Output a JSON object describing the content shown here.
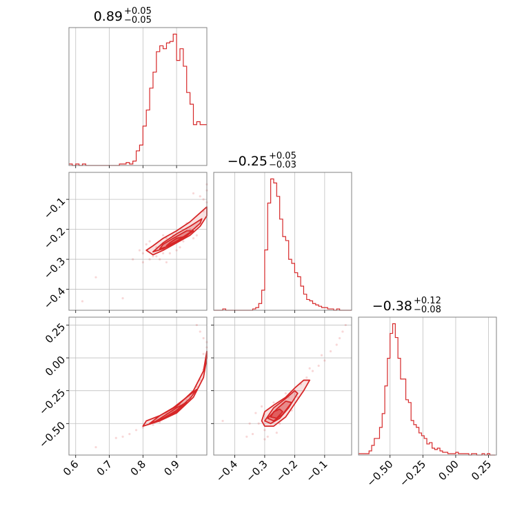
{
  "chart_data": {
    "type": "corner",
    "color": "#d62728",
    "grid": true,
    "parameters": [
      {
        "title": {
          "median": "0.89",
          "plus": "+0.05",
          "minus": "−0.05"
        },
        "range": [
          0.58,
          0.99
        ],
        "ticks": [
          0.6,
          0.7,
          0.8,
          0.9
        ],
        "tick_labels": [
          "0.6",
          "0.7",
          "0.8",
          "0.9"
        ]
      },
      {
        "title": {
          "median": "−0.25",
          "plus": "+0.05",
          "minus": "−0.03"
        },
        "range": [
          -0.47,
          -0.01
        ],
        "ticks": [
          -0.4,
          -0.3,
          -0.2,
          -0.1
        ],
        "tick_labels": [
          "−0.4",
          "−0.3",
          "−0.2",
          "−0.1"
        ]
      },
      {
        "title": {
          "median": "−0.38",
          "plus": "+0.12",
          "minus": "−0.08"
        },
        "range": [
          -0.74,
          0.31
        ],
        "ticks": [
          -0.5,
          -0.25,
          0.0,
          0.25
        ],
        "tick_labels": [
          "−0.50",
          "−0.25",
          "0.00",
          "0.25"
        ]
      }
    ],
    "histograms": [
      {
        "param": 0,
        "bin_edges": [
          0.58,
          0.59,
          0.6,
          0.61,
          0.62,
          0.63,
          0.64,
          0.65,
          0.66,
          0.67,
          0.68,
          0.69,
          0.7,
          0.71,
          0.72,
          0.73,
          0.74,
          0.75,
          0.76,
          0.77,
          0.78,
          0.79,
          0.8,
          0.81,
          0.82,
          0.83,
          0.84,
          0.85,
          0.86,
          0.87,
          0.88,
          0.89,
          0.9,
          0.91,
          0.92,
          0.93,
          0.94,
          0.95,
          0.96,
          0.97,
          0.98,
          0.99
        ],
        "counts": [
          1,
          0,
          1,
          0,
          1,
          0,
          0,
          0,
          0,
          0,
          0,
          0,
          0,
          0,
          0,
          1,
          1,
          2,
          1,
          3,
          10,
          14,
          27,
          38,
          53,
          64,
          78,
          82,
          80,
          84,
          85,
          90,
          72,
          80,
          68,
          50,
          42,
          28,
          30,
          28,
          28
        ]
      },
      {
        "param": 1,
        "bin_edges": [
          -0.47,
          -0.46,
          -0.45,
          -0.44,
          -0.43,
          -0.42,
          -0.41,
          -0.4,
          -0.39,
          -0.38,
          -0.37,
          -0.36,
          -0.35,
          -0.34,
          -0.33,
          -0.32,
          -0.31,
          -0.3,
          -0.29,
          -0.28,
          -0.27,
          -0.26,
          -0.25,
          -0.24,
          -0.23,
          -0.22,
          -0.21,
          -0.2,
          -0.19,
          -0.18,
          -0.17,
          -0.16,
          -0.15,
          -0.14,
          -0.13,
          -0.12,
          -0.11,
          -0.1,
          -0.09,
          -0.08,
          -0.07,
          -0.06,
          -0.05,
          -0.04,
          -0.03,
          -0.02,
          -0.01
        ],
        "counts": [
          0,
          0,
          0,
          1,
          0,
          0,
          0,
          0,
          0,
          0,
          0,
          0,
          0,
          1,
          2,
          5,
          15,
          45,
          80,
          98,
          95,
          85,
          68,
          55,
          52,
          38,
          35,
          28,
          25,
          18,
          12,
          8,
          7,
          5,
          4,
          3,
          2,
          2,
          1,
          1,
          0,
          1,
          0,
          0,
          0,
          0
        ]
      },
      {
        "param": 2,
        "bin_edges": [
          -0.74,
          -0.72,
          -0.7,
          -0.68,
          -0.66,
          -0.64,
          -0.62,
          -0.6,
          -0.58,
          -0.56,
          -0.54,
          -0.52,
          -0.5,
          -0.48,
          -0.46,
          -0.44,
          -0.42,
          -0.4,
          -0.38,
          -0.36,
          -0.34,
          -0.32,
          -0.3,
          -0.28,
          -0.26,
          -0.24,
          -0.22,
          -0.2,
          -0.18,
          -0.16,
          -0.14,
          -0.12,
          -0.1,
          -0.08,
          -0.06,
          -0.04,
          -0.02,
          0.0,
          0.02,
          0.04,
          0.06,
          0.08,
          0.1,
          0.12,
          0.14,
          0.16,
          0.18,
          0.2,
          0.22,
          0.24,
          0.26,
          0.28,
          0.3
        ],
        "counts": [
          1,
          1,
          1,
          1,
          3,
          7,
          12,
          12,
          20,
          30,
          50,
          70,
          88,
          95,
          85,
          70,
          55,
          55,
          40,
          38,
          25,
          22,
          20,
          16,
          14,
          12,
          8,
          9,
          5,
          4,
          5,
          3,
          2,
          2,
          1,
          1,
          1,
          2,
          1,
          1,
          1,
          1,
          0,
          1,
          1,
          0,
          0,
          1,
          0,
          1,
          0,
          0
        ]
      }
    ],
    "contour_panels": [
      {
        "x_param": 0,
        "y_param": 1,
        "levels": [
          [
            [
              0.81,
              -0.27
            ],
            [
              0.83,
              -0.285
            ],
            [
              0.86,
              -0.27
            ],
            [
              0.9,
              -0.245
            ],
            [
              0.94,
              -0.22
            ],
            [
              0.97,
              -0.19
            ],
            [
              0.99,
              -0.155
            ],
            [
              0.99,
              -0.125
            ],
            [
              0.97,
              -0.145
            ],
            [
              0.94,
              -0.175
            ],
            [
              0.9,
              -0.205
            ],
            [
              0.86,
              -0.23
            ],
            [
              0.83,
              -0.255
            ]
          ],
          [
            [
              0.83,
              -0.275
            ],
            [
              0.86,
              -0.265
            ],
            [
              0.9,
              -0.24
            ],
            [
              0.94,
              -0.21
            ],
            [
              0.97,
              -0.18
            ],
            [
              0.975,
              -0.165
            ],
            [
              0.94,
              -0.19
            ],
            [
              0.9,
              -0.215
            ],
            [
              0.86,
              -0.245
            ]
          ],
          [
            [
              0.85,
              -0.265
            ],
            [
              0.88,
              -0.255
            ],
            [
              0.92,
              -0.23
            ],
            [
              0.95,
              -0.205
            ],
            [
              0.93,
              -0.205
            ],
            [
              0.89,
              -0.23
            ],
            [
              0.86,
              -0.25
            ]
          ],
          [
            [
              0.87,
              -0.255
            ],
            [
              0.9,
              -0.24
            ],
            [
              0.92,
              -0.225
            ],
            [
              0.9,
              -0.23
            ],
            [
              0.88,
              -0.245
            ]
          ]
        ],
        "samples": [
          [
            0.8,
            -0.28
          ],
          [
            0.82,
            -0.3
          ],
          [
            0.84,
            -0.26
          ],
          [
            0.86,
            -0.28
          ],
          [
            0.88,
            -0.25
          ],
          [
            0.9,
            -0.23
          ],
          [
            0.92,
            -0.24
          ],
          [
            0.94,
            -0.2
          ],
          [
            0.96,
            -0.19
          ],
          [
            0.98,
            -0.14
          ],
          [
            0.99,
            -0.11
          ],
          [
            0.98,
            -0.1
          ],
          [
            0.83,
            -0.29
          ],
          [
            0.85,
            -0.3
          ],
          [
            0.87,
            -0.23
          ],
          [
            0.79,
            -0.27
          ],
          [
            0.81,
            -0.25
          ],
          [
            0.97,
            -0.09
          ],
          [
            0.95,
            -0.08
          ],
          [
            0.99,
            -0.07
          ],
          [
            0.99,
            -0.05
          ],
          [
            0.95,
            -0.23
          ],
          [
            0.91,
            -0.26
          ],
          [
            0.89,
            -0.22
          ],
          [
            0.8,
            -0.31
          ],
          [
            0.82,
            -0.24
          ],
          [
            0.93,
            -0.18
          ],
          [
            0.88,
            -0.28
          ],
          [
            0.84,
            -0.29
          ],
          [
            0.86,
            -0.22
          ],
          [
            0.62,
            -0.44
          ],
          [
            0.66,
            -0.36
          ],
          [
            0.74,
            -0.43
          ],
          [
            0.77,
            -0.3
          ],
          [
            0.96,
            -0.22
          ],
          [
            0.97,
            -0.17
          ],
          [
            0.87,
            -0.31
          ],
          [
            0.9,
            -0.27
          ]
        ]
      },
      {
        "x_param": 0,
        "y_param": 2,
        "levels": [
          [
            [
              0.8,
              -0.52
            ],
            [
              0.85,
              -0.48
            ],
            [
              0.9,
              -0.42
            ],
            [
              0.95,
              -0.3
            ],
            [
              0.98,
              -0.15
            ],
            [
              0.99,
              0.0
            ],
            [
              0.99,
              0.05
            ],
            [
              0.98,
              -0.1
            ],
            [
              0.95,
              -0.25
            ],
            [
              0.9,
              -0.37
            ],
            [
              0.85,
              -0.44
            ],
            [
              0.81,
              -0.48
            ]
          ],
          [
            [
              0.82,
              -0.5
            ],
            [
              0.86,
              -0.46
            ],
            [
              0.9,
              -0.4
            ],
            [
              0.94,
              -0.31
            ],
            [
              0.96,
              -0.24
            ],
            [
              0.93,
              -0.3
            ],
            [
              0.89,
              -0.38
            ],
            [
              0.85,
              -0.44
            ]
          ],
          [
            [
              0.84,
              -0.48
            ],
            [
              0.88,
              -0.44
            ],
            [
              0.91,
              -0.39
            ],
            [
              0.93,
              -0.34
            ],
            [
              0.9,
              -0.38
            ],
            [
              0.87,
              -0.43
            ]
          ],
          [
            [
              0.86,
              -0.465
            ],
            [
              0.89,
              -0.43
            ],
            [
              0.91,
              -0.395
            ],
            [
              0.89,
              -0.42
            ]
          ]
        ],
        "samples": [
          [
            0.8,
            -0.53
          ],
          [
            0.82,
            -0.5
          ],
          [
            0.84,
            -0.47
          ],
          [
            0.86,
            -0.45
          ],
          [
            0.88,
            -0.43
          ],
          [
            0.9,
            -0.4
          ],
          [
            0.92,
            -0.35
          ],
          [
            0.94,
            -0.3
          ],
          [
            0.96,
            -0.22
          ],
          [
            0.97,
            -0.17
          ],
          [
            0.98,
            -0.09
          ],
          [
            0.99,
            0.0
          ],
          [
            0.99,
            0.08
          ],
          [
            0.98,
            0.15
          ],
          [
            0.97,
            0.2
          ],
          [
            0.96,
            0.25
          ],
          [
            0.76,
            -0.58
          ],
          [
            0.74,
            -0.6
          ],
          [
            0.78,
            -0.55
          ],
          [
            0.83,
            -0.51
          ],
          [
            0.87,
            -0.42
          ],
          [
            0.91,
            -0.36
          ],
          [
            0.95,
            -0.27
          ],
          [
            0.99,
            0.12
          ],
          [
            0.98,
            0.03
          ],
          [
            0.66,
            -0.68
          ],
          [
            0.72,
            -0.61
          ],
          [
            0.85,
            -0.49
          ],
          [
            0.89,
            -0.41
          ],
          [
            0.93,
            -0.32
          ]
        ]
      },
      {
        "x_param": 1,
        "y_param": 2,
        "levels": [
          [
            [
              -0.31,
              -0.48
            ],
            [
              -0.3,
              -0.52
            ],
            [
              -0.27,
              -0.52
            ],
            [
              -0.23,
              -0.45
            ],
            [
              -0.2,
              -0.35
            ],
            [
              -0.17,
              -0.25
            ],
            [
              -0.15,
              -0.17
            ],
            [
              -0.17,
              -0.17
            ],
            [
              -0.2,
              -0.23
            ],
            [
              -0.23,
              -0.3
            ],
            [
              -0.27,
              -0.36
            ],
            [
              -0.3,
              -0.41
            ]
          ],
          [
            [
              -0.3,
              -0.48
            ],
            [
              -0.28,
              -0.5
            ],
            [
              -0.25,
              -0.46
            ],
            [
              -0.22,
              -0.38
            ],
            [
              -0.19,
              -0.27
            ],
            [
              -0.2,
              -0.25
            ],
            [
              -0.23,
              -0.31
            ],
            [
              -0.27,
              -0.38
            ]
          ],
          [
            [
              -0.29,
              -0.46
            ],
            [
              -0.27,
              -0.48
            ],
            [
              -0.24,
              -0.43
            ],
            [
              -0.21,
              -0.34
            ],
            [
              -0.23,
              -0.33
            ],
            [
              -0.26,
              -0.39
            ]
          ],
          [
            [
              -0.28,
              -0.45
            ],
            [
              -0.26,
              -0.46
            ],
            [
              -0.24,
              -0.41
            ],
            [
              -0.25,
              -0.39
            ],
            [
              -0.27,
              -0.41
            ]
          ]
        ],
        "samples": [
          [
            -0.32,
            -0.5
          ],
          [
            -0.3,
            -0.55
          ],
          [
            -0.28,
            -0.44
          ],
          [
            -0.26,
            -0.4
          ],
          [
            -0.24,
            -0.35
          ],
          [
            -0.22,
            -0.3
          ],
          [
            -0.2,
            -0.25
          ],
          [
            -0.18,
            -0.2
          ],
          [
            -0.16,
            -0.15
          ],
          [
            -0.14,
            -0.1
          ],
          [
            -0.12,
            -0.06
          ],
          [
            -0.1,
            -0.02
          ],
          [
            -0.08,
            0.05
          ],
          [
            -0.06,
            0.1
          ],
          [
            -0.05,
            0.15
          ],
          [
            -0.04,
            0.2
          ],
          [
            -0.03,
            0.25
          ],
          [
            -0.34,
            -0.58
          ],
          [
            -0.29,
            -0.6
          ],
          [
            -0.25,
            -0.5
          ],
          [
            -0.21,
            -0.4
          ],
          [
            -0.33,
            -0.42
          ],
          [
            -0.27,
            -0.34
          ],
          [
            -0.23,
            -0.27
          ],
          [
            -0.19,
            -0.3
          ],
          [
            -0.35,
            -0.5
          ],
          [
            -0.36,
            -0.6
          ],
          [
            -0.31,
            -0.37
          ],
          [
            -0.15,
            -0.08
          ],
          [
            -0.11,
            0.02
          ],
          [
            -0.44,
            -0.48
          ],
          [
            -0.26,
            -0.57
          ],
          [
            -0.3,
            -0.62
          ]
        ]
      }
    ]
  }
}
